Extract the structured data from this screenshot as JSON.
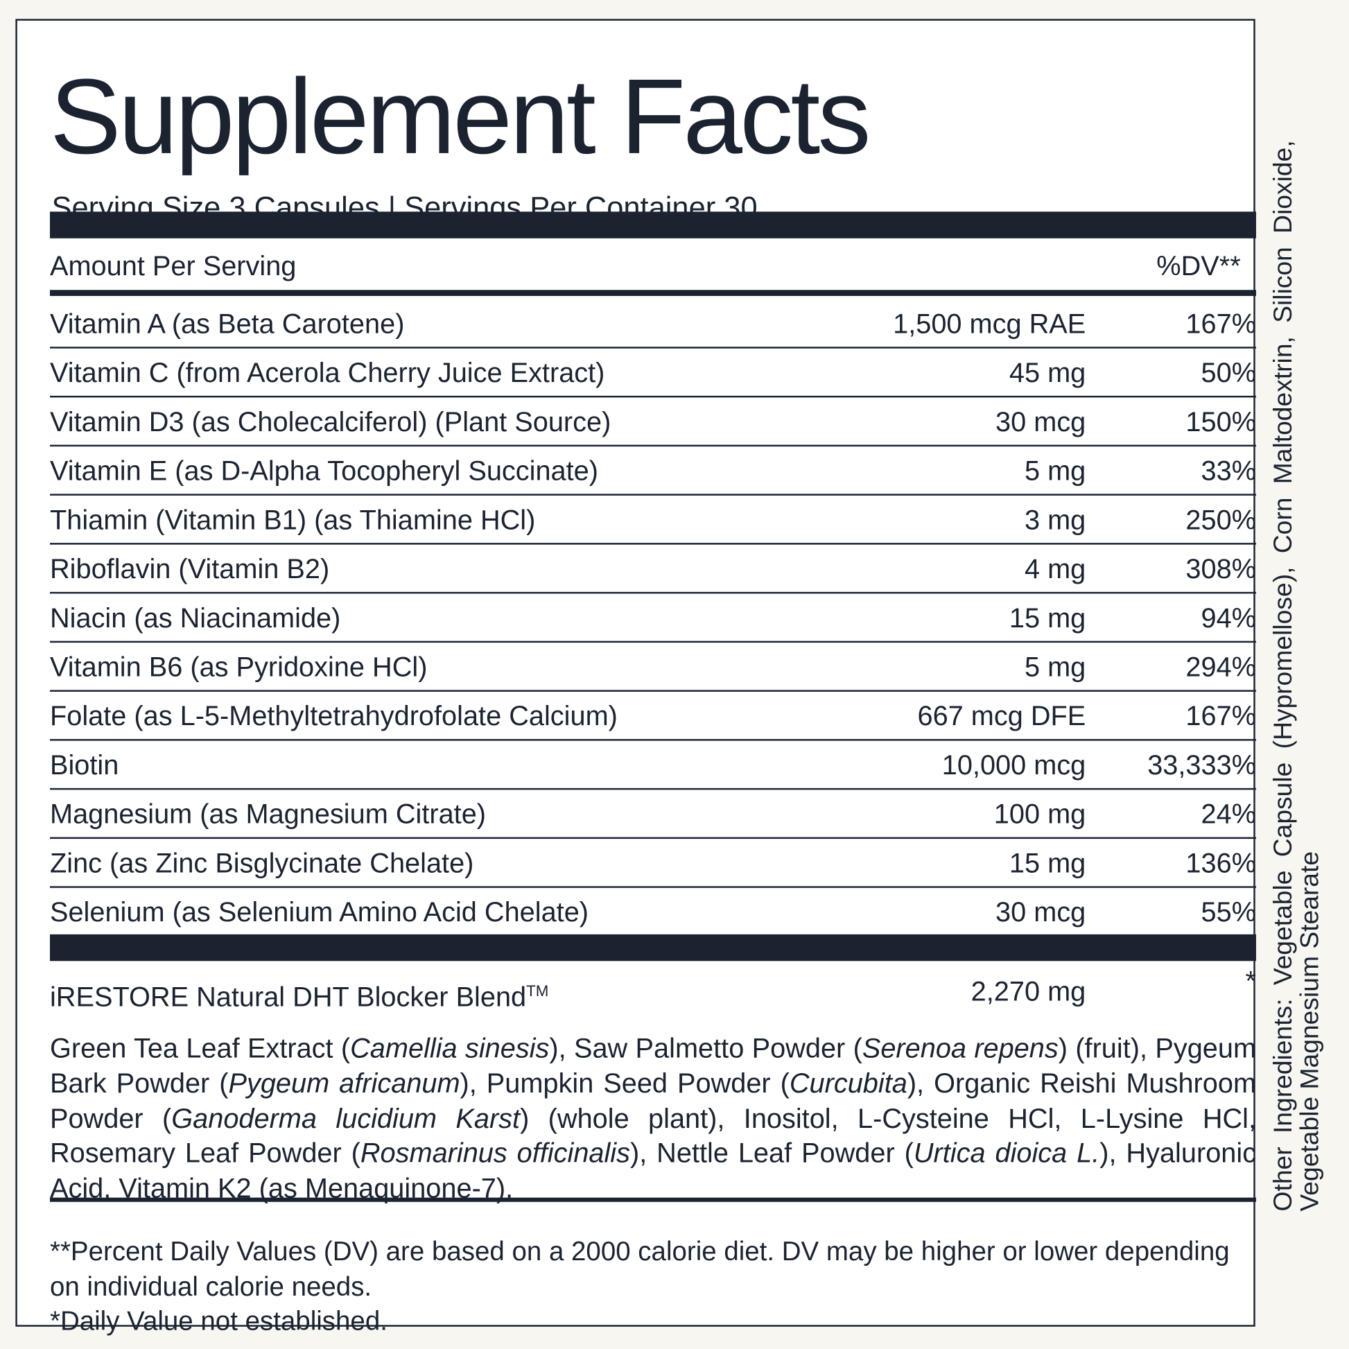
{
  "label": {
    "title": "Supplement Facts",
    "serving": "Serving Size 3 Capsules | Servings Per Container 30",
    "amount_header": "Amount Per Serving",
    "dv_header": "%DV**",
    "nutrients": [
      [
        "Vitamin A (as Beta Carotene)",
        "1,500 mcg RAE",
        "167%"
      ],
      [
        "Vitamin C (from Acerola Cherry Juice Extract)",
        "45 mg",
        "50%"
      ],
      [
        "Vitamin D3 (as Cholecalciferol) (Plant Source)",
        "30 mcg",
        "150%"
      ],
      [
        "Vitamin E (as D-Alpha Tocopheryl Succinate)",
        "5 mg",
        "33%"
      ],
      [
        "Thiamin (Vitamin B1) (as Thiamine HCl)",
        "3 mg",
        "250%"
      ],
      [
        "Riboflavin (Vitamin B2)",
        "4 mg",
        "308%"
      ],
      [
        "Niacin (as Niacinamide)",
        "15 mg",
        "94%"
      ],
      [
        "Vitamin B6 (as Pyridoxine HCl)",
        "5 mg",
        "294%"
      ],
      [
        "Folate (as L-5-Methyltetrahydrofolate Calcium)",
        "667 mcg DFE",
        "167%"
      ],
      [
        "Biotin",
        "10,000 mcg",
        "33,333%"
      ],
      [
        "Magnesium (as Magnesium Citrate)",
        "100 mg",
        "24%"
      ],
      [
        "Zinc (as Zinc Bisglycinate Chelate)",
        "15 mg",
        "136%"
      ],
      [
        "Selenium (as Selenium Amino Acid Chelate)",
        "30 mcg",
        "55%"
      ]
    ],
    "blend": {
      "name": "iRESTORE Natural DHT Blocker Blend",
      "trademark": "TM",
      "amount": "2,270 mg",
      "dv": "*",
      "ingredients": [
        {
          "text": "Green Tea Leaf Extract (",
          "italic": false
        },
        {
          "text": "Camellia sinesis",
          "italic": true
        },
        {
          "text": "), Saw Palmetto Powder (",
          "italic": false
        },
        {
          "text": "Serenoa repens",
          "italic": true
        },
        {
          "text": ") (fruit), Pygeum Bark Powder (",
          "italic": false
        },
        {
          "text": "Pygeum africanum",
          "italic": true
        },
        {
          "text": "), Pumpkin Seed Powder (",
          "italic": false
        },
        {
          "text": "Curcubita",
          "italic": true
        },
        {
          "text": "), Organic Reishi Mushroom Powder (",
          "italic": false
        },
        {
          "text": "Ganoderma lucidium Karst",
          "italic": true
        },
        {
          "text": ") (whole plant), Inositol, L-Cysteine HCl, L-Lysine HCl, Rosemary Leaf Powder (",
          "italic": false
        },
        {
          "text": "Rosmarinus officinalis",
          "italic": true
        },
        {
          "text": "), Nettle Leaf Powder (",
          "italic": false
        },
        {
          "text": "Urtica dioica L.",
          "italic": true
        },
        {
          "text": "), Hyaluronic Acid, Vitamin K2 (as Menaquinone-7).",
          "italic": false
        }
      ]
    },
    "footnotes": [
      "**Percent Daily Values (DV) are based on a 2000 calorie diet. DV may be higher or lower depending on individual calorie needs.",
      "*Daily Value not established."
    ],
    "other_ingredients": [
      "Other Ingredients: Vegetable Capsule (Hypromellose), Corn Maltodextrin, Silicon Dioxide,",
      "Vegetable Magnesium Stearate"
    ]
  }
}
